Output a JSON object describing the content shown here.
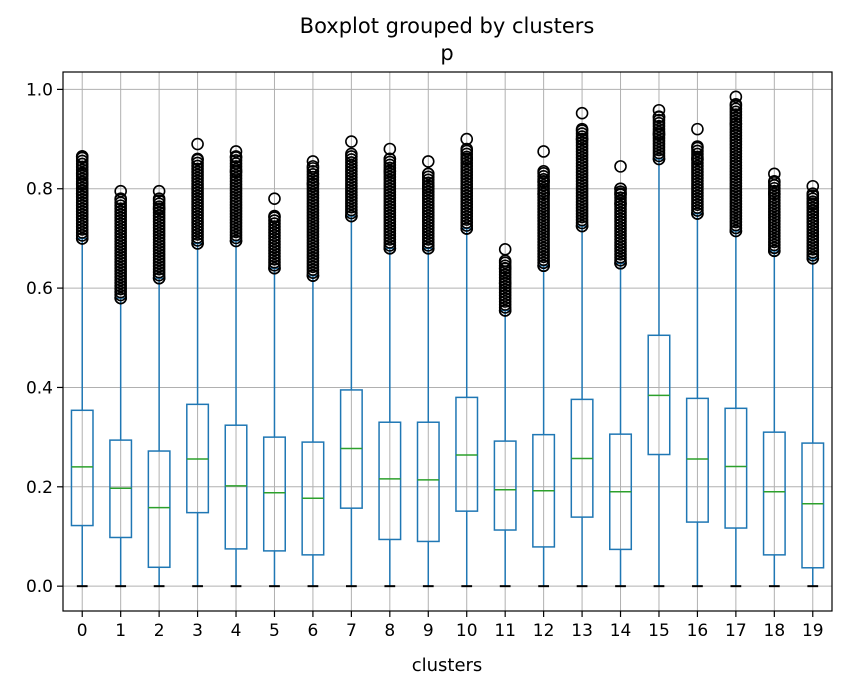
{
  "chart_data": {
    "type": "boxplot",
    "title": "Boxplot grouped by clusters",
    "subtitle": "p",
    "xlabel": "clusters",
    "ylabel": "",
    "ylim": [
      -0.05,
      1.035
    ],
    "yticks": [
      0.0,
      0.2,
      0.4,
      0.6,
      0.8,
      1.0
    ],
    "ytick_labels": [
      "0.0",
      "0.2",
      "0.4",
      "0.6",
      "0.8",
      "1.0"
    ],
    "grid": true,
    "colors": {
      "box": "#1f77b4",
      "median": "#2ca02c",
      "whisker": "#1f77b4",
      "cap": "#000000",
      "flier": "#000000",
      "grid": "#b0b0b0"
    },
    "categories": [
      "0",
      "1",
      "2",
      "3",
      "4",
      "5",
      "6",
      "7",
      "8",
      "9",
      "10",
      "11",
      "12",
      "13",
      "14",
      "15",
      "16",
      "17",
      "18",
      "19"
    ],
    "boxes": [
      {
        "whislo": 0.0,
        "q1": 0.122,
        "med": 0.24,
        "q3": 0.354,
        "whishi": 0.7,
        "fliers": [
          0.7,
          0.79,
          0.81,
          0.83,
          0.865,
          0.865
        ]
      },
      {
        "whislo": 0.0,
        "q1": 0.098,
        "med": 0.197,
        "q3": 0.294,
        "whishi": 0.58,
        "fliers": [
          0.58,
          0.78,
          0.795
        ]
      },
      {
        "whislo": 0.0,
        "q1": 0.038,
        "med": 0.158,
        "q3": 0.272,
        "whishi": 0.62,
        "fliers": [
          0.62,
          0.76,
          0.78,
          0.795
        ]
      },
      {
        "whislo": 0.0,
        "q1": 0.148,
        "med": 0.256,
        "q3": 0.366,
        "whishi": 0.69,
        "fliers": [
          0.69,
          0.86,
          0.89
        ]
      },
      {
        "whislo": 0.0,
        "q1": 0.075,
        "med": 0.202,
        "q3": 0.324,
        "whishi": 0.695,
        "fliers": [
          0.695,
          0.835,
          0.865,
          0.875
        ]
      },
      {
        "whislo": 0.0,
        "q1": 0.071,
        "med": 0.188,
        "q3": 0.3,
        "whishi": 0.64,
        "fliers": [
          0.64,
          0.745,
          0.78
        ]
      },
      {
        "whislo": 0.0,
        "q1": 0.063,
        "med": 0.177,
        "q3": 0.29,
        "whishi": 0.625,
        "fliers": [
          0.625,
          0.81,
          0.845,
          0.855
        ]
      },
      {
        "whislo": 0.0,
        "q1": 0.157,
        "med": 0.277,
        "q3": 0.395,
        "whishi": 0.745,
        "fliers": [
          0.745,
          0.87,
          0.895
        ]
      },
      {
        "whislo": 0.0,
        "q1": 0.094,
        "med": 0.216,
        "q3": 0.33,
        "whishi": 0.68,
        "fliers": [
          0.68,
          0.835,
          0.86,
          0.88
        ]
      },
      {
        "whislo": 0.0,
        "q1": 0.09,
        "med": 0.214,
        "q3": 0.33,
        "whishi": 0.68,
        "fliers": [
          0.68,
          0.805,
          0.83,
          0.855
        ]
      },
      {
        "whislo": 0.0,
        "q1": 0.151,
        "med": 0.264,
        "q3": 0.38,
        "whishi": 0.72,
        "fliers": [
          0.72,
          0.86,
          0.88,
          0.9
        ]
      },
      {
        "whislo": 0.0,
        "q1": 0.113,
        "med": 0.194,
        "q3": 0.292,
        "whishi": 0.555,
        "fliers": [
          0.555,
          0.61,
          0.64,
          0.655,
          0.678
        ]
      },
      {
        "whislo": 0.0,
        "q1": 0.079,
        "med": 0.192,
        "q3": 0.305,
        "whishi": 0.645,
        "fliers": [
          0.645,
          0.79,
          0.815,
          0.835,
          0.875
        ]
      },
      {
        "whislo": 0.0,
        "q1": 0.139,
        "med": 0.257,
        "q3": 0.376,
        "whishi": 0.725,
        "fliers": [
          0.725,
          0.9,
          0.92,
          0.952
        ]
      },
      {
        "whislo": 0.0,
        "q1": 0.074,
        "med": 0.19,
        "q3": 0.306,
        "whishi": 0.65,
        "fliers": [
          0.65,
          0.77,
          0.79,
          0.8,
          0.845
        ]
      },
      {
        "whislo": 0.0,
        "q1": 0.265,
        "med": 0.384,
        "q3": 0.505,
        "whishi": 0.86,
        "fliers": [
          0.86,
          0.91,
          0.945,
          0.958
        ]
      },
      {
        "whislo": 0.0,
        "q1": 0.129,
        "med": 0.256,
        "q3": 0.378,
        "whishi": 0.75,
        "fliers": [
          0.75,
          0.86,
          0.885,
          0.92
        ]
      },
      {
        "whislo": 0.0,
        "q1": 0.117,
        "med": 0.241,
        "q3": 0.358,
        "whishi": 0.715,
        "fliers": [
          0.715,
          0.93,
          0.97,
          0.985
        ]
      },
      {
        "whislo": 0.0,
        "q1": 0.063,
        "med": 0.19,
        "q3": 0.31,
        "whishi": 0.675,
        "fliers": [
          0.675,
          0.79,
          0.815,
          0.83
        ]
      },
      {
        "whislo": 0.0,
        "q1": 0.037,
        "med": 0.166,
        "q3": 0.288,
        "whishi": 0.66,
        "fliers": [
          0.66,
          0.77,
          0.79,
          0.805
        ]
      }
    ]
  }
}
